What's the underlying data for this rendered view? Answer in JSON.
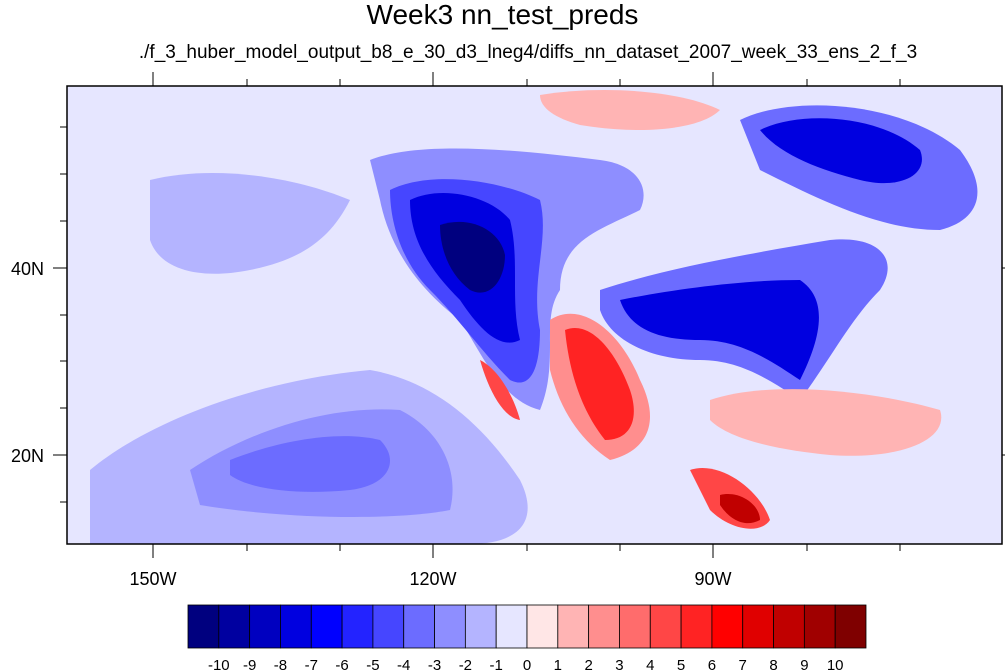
{
  "title": "Week3 nn_test_preds",
  "subtitle": "./f_3_huber_model_output_b8_e_30_d3_lneg4/diffs_nn_dataset_2007_week_33_ens_2_f_3",
  "lon_labels": [
    "150W",
    "120W",
    "90W"
  ],
  "lat_labels": [
    "40N",
    "20N"
  ],
  "colorbar": {
    "labels": [
      "-10",
      "-9",
      "-8",
      "-7",
      "-6",
      "-5",
      "-4",
      "-3",
      "-2",
      "-1",
      "0",
      "1",
      "2",
      "3",
      "4",
      "5",
      "6",
      "7",
      "8",
      "9",
      "10"
    ],
    "colors": [
      "#00007f",
      "#0000a0",
      "#0000c0",
      "#0000e0",
      "#0000ff",
      "#2323ff",
      "#4646ff",
      "#6c6cff",
      "#8e8eff",
      "#b4b4ff",
      "#e6e6ff",
      "#ffe6e6",
      "#ffb4b4",
      "#ff8e8e",
      "#ff6c6c",
      "#ff4646",
      "#ff2323",
      "#ff0000",
      "#e00000",
      "#c00000",
      "#a00000",
      "#7f0000"
    ]
  },
  "ocean_color": "#e6e6ff"
}
